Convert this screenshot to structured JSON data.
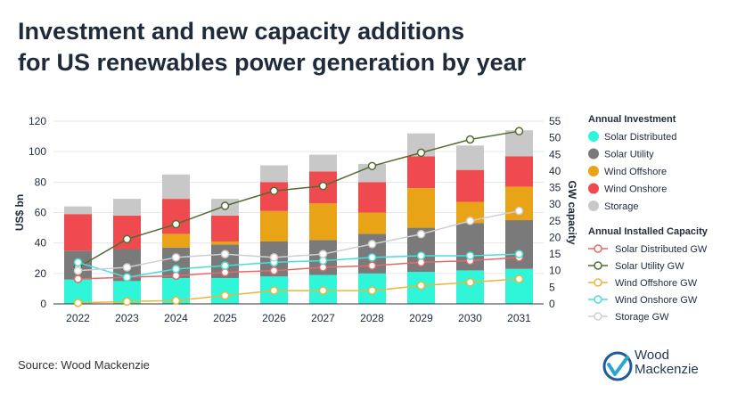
{
  "title_lines": [
    "Investment and new capacity additions",
    "for US renewables power generation by year"
  ],
  "source": "Source: Wood Mackenzie",
  "logo": {
    "line1": "Wood",
    "line2": "Mackenzie"
  },
  "colors": {
    "solar_distributed": "#2ff5d9",
    "solar_utility": "#7a7a7a",
    "wind_offshore": "#e8a317",
    "wind_onshore": "#ef4a4f",
    "storage": "#c8c8c8",
    "line_solar_distributed": "#e46a6a",
    "line_solar_utility": "#556b2f",
    "line_wind_offshore": "#e8b63b",
    "line_wind_onshore": "#45e0d8",
    "line_storage": "#cfcfcf"
  },
  "chart_data": {
    "type": "bar",
    "ylabel": "US$ bn",
    "ylabel_right": "GW capacity",
    "ylim": [
      0,
      120
    ],
    "ylim_right": [
      0,
      55
    ],
    "yticks": [
      "0",
      "20",
      "40",
      "60",
      "80",
      "100",
      "120"
    ],
    "yticks_right": [
      "0",
      "5",
      "10",
      "15",
      "20",
      "25",
      "30",
      "35",
      "40",
      "45",
      "50",
      "55"
    ],
    "categories": [
      "2022",
      "2023",
      "2024",
      "2025",
      "2026",
      "2027",
      "2028",
      "2029",
      "2030",
      "2031"
    ],
    "legend_investment_title": "Annual Investment",
    "legend_capacity_title": "Annual Installed Capacity",
    "bar_series": [
      {
        "key": "solar_distributed",
        "name": "Solar Distributed",
        "values": [
          16,
          15,
          17,
          17,
          18,
          19,
          20,
          21,
          22,
          23
        ]
      },
      {
        "key": "solar_utility",
        "name": "Solar Utility",
        "values": [
          19,
          21,
          20,
          22,
          23,
          23,
          26,
          29,
          31,
          32
        ]
      },
      {
        "key": "wind_offshore",
        "name": "Wind Offshore",
        "values": [
          0,
          0,
          9,
          2,
          20,
          24,
          14,
          26,
          14,
          22
        ]
      },
      {
        "key": "wind_onshore",
        "name": "Wind Onshore",
        "values": [
          24,
          22,
          23,
          17,
          19,
          21,
          20,
          21,
          21,
          20
        ]
      },
      {
        "key": "storage",
        "name": "Storage",
        "values": [
          5,
          11,
          16,
          11,
          11,
          11,
          12,
          15,
          16,
          17
        ]
      }
    ],
    "line_series": [
      {
        "key": "line_solar_distributed",
        "name": "Solar Distributed GW",
        "values": [
          7.5,
          8,
          8.5,
          9.5,
          10,
          11,
          11.5,
          12.5,
          13,
          14
        ]
      },
      {
        "key": "line_solar_utility",
        "name": "Solar Utility GW",
        "values": [
          11,
          19.5,
          24,
          29.5,
          34,
          35.5,
          41.5,
          45.5,
          49.5,
          52
        ]
      },
      {
        "key": "line_wind_offshore",
        "name": "Wind Offshore GW",
        "values": [
          0.3,
          0.7,
          1,
          2.5,
          4,
          4,
          4,
          5.5,
          6.5,
          7.5
        ]
      },
      {
        "key": "line_wind_onshore",
        "name": "Wind Onshore GW",
        "values": [
          12.5,
          8,
          10.5,
          11.5,
          12.5,
          13,
          14,
          14.5,
          14.5,
          15
        ]
      },
      {
        "key": "line_storage",
        "name": "Storage GW",
        "values": [
          10,
          11,
          14,
          15,
          14,
          15,
          18,
          21,
          25,
          28
        ]
      }
    ]
  }
}
